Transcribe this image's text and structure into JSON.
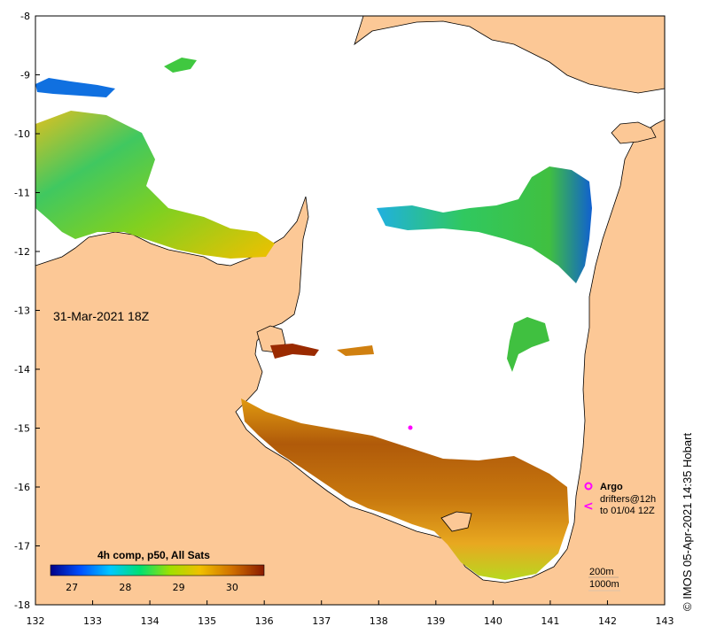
{
  "map": {
    "lon_ticks": [
      "132",
      "133",
      "134",
      "135",
      "136",
      "137",
      "138",
      "139",
      "140",
      "141",
      "142",
      "143"
    ],
    "lat_ticks": [
      "-8",
      "-9",
      "-10",
      "-11",
      "-12",
      "-13",
      "-14",
      "-15",
      "-16",
      "-17",
      "-18"
    ],
    "lon_range": [
      132,
      143
    ],
    "lat_range": [
      -18,
      -8
    ],
    "timestamp": "31-Mar-2021 18Z",
    "colors": {
      "land": "#fcc896",
      "coast": "#000000",
      "no_data": "#ffffff",
      "argo_marker": "#ff00ff"
    }
  },
  "colorbar": {
    "title": "4h comp, p50, All Sats",
    "ticks": [
      "27",
      "28",
      "29",
      "30"
    ],
    "range": [
      26.6,
      30.6
    ],
    "colors": [
      "#000088",
      "#0050ff",
      "#00c8ff",
      "#00e070",
      "#a0e000",
      "#f0c000",
      "#d07000",
      "#8a1a00"
    ]
  },
  "legend": {
    "argo_label": "Argo",
    "drifters_line1": "drifters@12h",
    "drifters_line2": "to 01/04 12Z",
    "isobath_200": "200m",
    "isobath_1000": "1000m"
  },
  "credit": "© IMOS 05-Apr-2021 14:35 Hobart"
}
